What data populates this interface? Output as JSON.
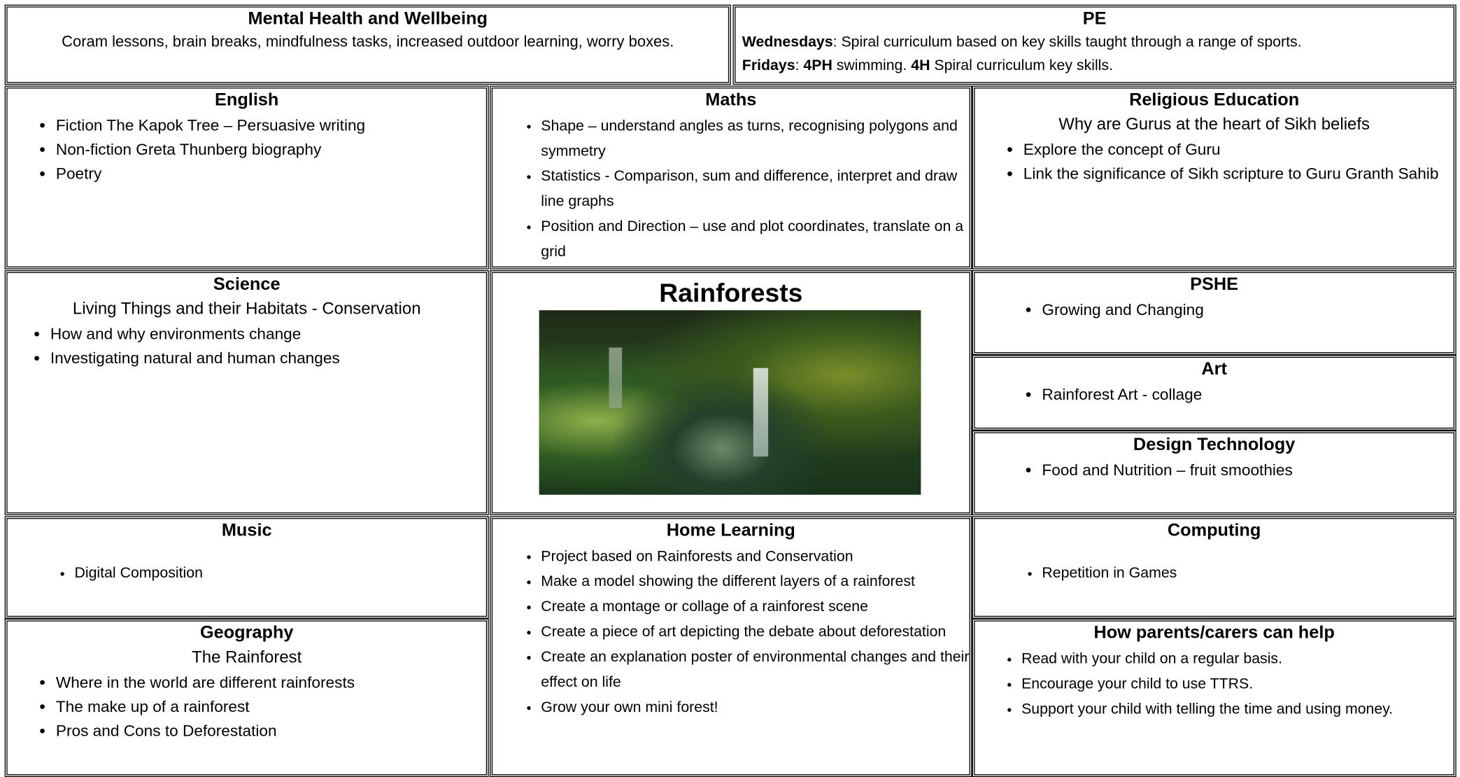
{
  "mental_health": {
    "title": "Mental Health and Wellbeing",
    "text": "Coram lessons, brain breaks, mindfulness tasks, increased outdoor learning, worry boxes."
  },
  "pe": {
    "title": "PE",
    "lines": [
      [
        {
          "text": "Wednesdays",
          "bold": true
        },
        {
          "text": ": Spiral curriculum based on key skills taught through a range of sports."
        }
      ],
      [
        {
          "text": "Fridays",
          "bold": true
        },
        {
          "text": ": "
        },
        {
          "text": "4PH",
          "bold": true
        },
        {
          "text": " swimming. "
        },
        {
          "text": "4H",
          "bold": true
        },
        {
          "text": " Spiral curriculum key skills."
        }
      ]
    ]
  },
  "english": {
    "title": "English",
    "items": [
      "Fiction The Kapok Tree – Persuasive writing",
      "Non-fiction Greta Thunberg biography",
      "Poetry"
    ]
  },
  "maths": {
    "title": "Maths",
    "items": [
      "Shape – understand angles as turns, recognising polygons and symmetry",
      "Statistics - Comparison, sum and difference, interpret and draw line graphs",
      "Position and Direction – use and plot coordinates, translate on a grid"
    ]
  },
  "religious_education": {
    "title": "Religious Education",
    "subtitle": "Why are Gurus at the heart of Sikh beliefs",
    "items": [
      "Explore the concept of Guru",
      "Link the significance of Sikh scripture to Guru Granth Sahib"
    ]
  },
  "science": {
    "title": "Science",
    "subtitle": "Living Things and their Habitats - Conservation",
    "items": [
      "How and why environments change",
      "Investigating natural and human changes"
    ]
  },
  "topic": {
    "title": "Rainforests"
  },
  "pshe": {
    "title": "PSHE",
    "items": [
      "Growing and Changing"
    ]
  },
  "art": {
    "title": "Art",
    "items": [
      "Rainforest Art - collage"
    ]
  },
  "design_technology": {
    "title": "Design Technology",
    "items": [
      "Food and Nutrition – fruit smoothies"
    ]
  },
  "music": {
    "title": "Music",
    "items": [
      "Digital Composition"
    ]
  },
  "geography": {
    "title": "Geography",
    "subtitle": "The Rainforest",
    "items": [
      "Where in the world are different rainforests",
      "The make up of a rainforest",
      "Pros and Cons to Deforestation"
    ]
  },
  "home_learning": {
    "title": "Home Learning",
    "items": [
      "Project based on Rainforests and Conservation",
      "Make a model showing the different layers of a rainforest",
      "Create a montage or collage of a rainforest scene",
      "Create a piece of art depicting the debate about deforestation",
      "Create an explanation poster of environmental changes and their effect on life",
      "Grow your own mini forest!"
    ]
  },
  "computing": {
    "title": "Computing",
    "items": [
      "Repetition in Games"
    ]
  },
  "parents": {
    "title": "How parents/carers can help",
    "items": [
      "Read with your child on a regular basis.",
      "Encourage your child to use TTRS.",
      "Support your child with telling the time and using money."
    ]
  }
}
